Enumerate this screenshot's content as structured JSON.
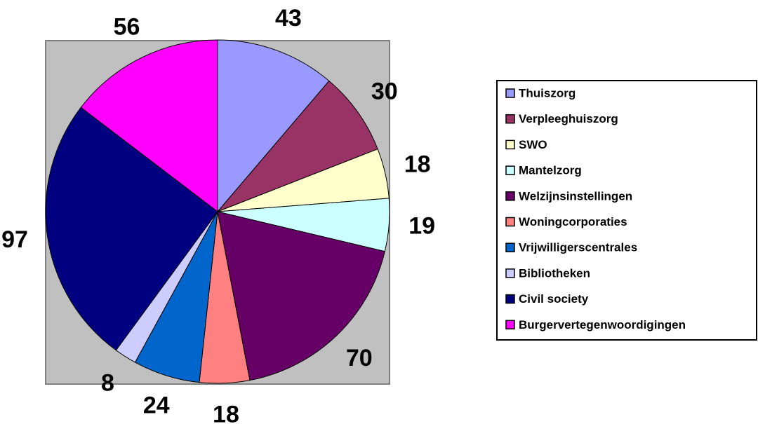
{
  "chart_data": {
    "type": "pie",
    "categories": [
      "Thuiszorg",
      "Verpleeghuiszorg",
      "SWO",
      "Mantelzorg",
      "Welzijnsinstellingen",
      "Woningcorporaties",
      "Vrijwilligerscentrales",
      "Bibliotheken",
      "Civil society",
      "Burgervertegenwoordigingen"
    ],
    "values": [
      43,
      30,
      18,
      19,
      70,
      18,
      24,
      8,
      97,
      56
    ],
    "colors": [
      "#9999ff",
      "#993366",
      "#ffffcc",
      "#ccffff",
      "#660066",
      "#ff8080",
      "#0066cc",
      "#ccccff",
      "#000080",
      "#ff00ff"
    ],
    "legend": "right"
  }
}
